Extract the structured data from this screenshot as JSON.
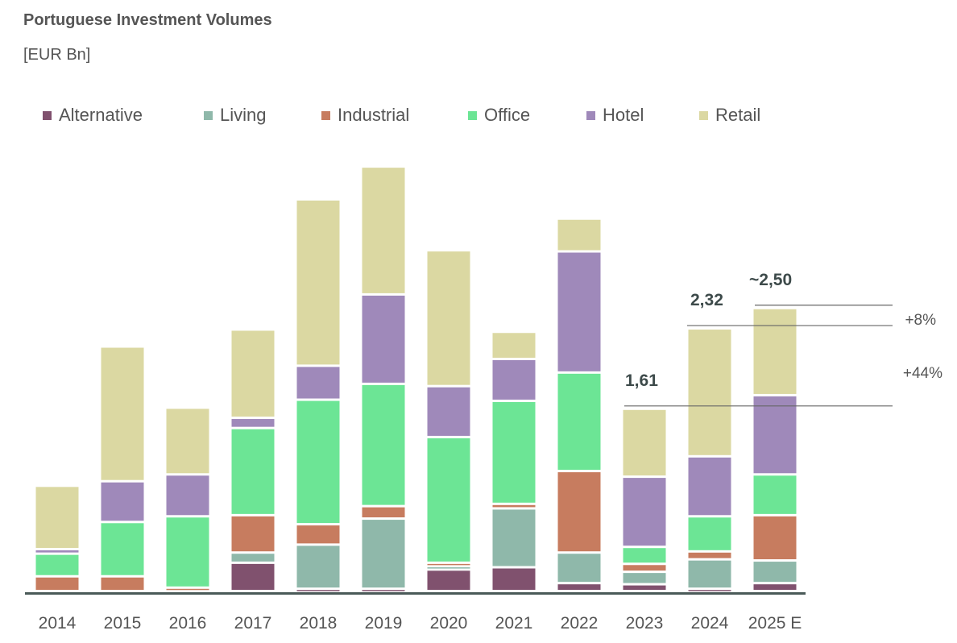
{
  "chart_data": {
    "type": "bar",
    "stacked": true,
    "title": "Portuguese Investment Volumes",
    "subtitle": "[EUR Bn]",
    "categories": [
      "2014",
      "2015",
      "2016",
      "2017",
      "2018",
      "2019",
      "2020",
      "2021",
      "2022",
      "2023",
      "2024",
      "2025 E"
    ],
    "series": [
      {
        "name": "Alternative",
        "color": "#80516e",
        "values": [
          0,
          0,
          0,
          0.25,
          0.02,
          0.02,
          0.19,
          0.21,
          0.07,
          0.06,
          0.02,
          0.07
        ]
      },
      {
        "name": "Living",
        "color": "#8fb8aa",
        "values": [
          0,
          0,
          0,
          0.09,
          0.39,
          0.62,
          0.03,
          0.52,
          0.27,
          0.11,
          0.26,
          0.2
        ]
      },
      {
        "name": "Industrial",
        "color": "#c77c5f",
        "values": [
          0.13,
          0.13,
          0.03,
          0.33,
          0.18,
          0.11,
          0.03,
          0.04,
          0.72,
          0.07,
          0.07,
          0.4
        ]
      },
      {
        "name": "Office",
        "color": "#6ce595",
        "values": [
          0.2,
          0.48,
          0.63,
          0.77,
          1.1,
          1.08,
          1.11,
          0.91,
          0.87,
          0.15,
          0.31,
          0.36
        ]
      },
      {
        "name": "Hotel",
        "color": "#9f89ba",
        "values": [
          0.04,
          0.36,
          0.37,
          0.09,
          0.3,
          0.79,
          0.45,
          0.37,
          1.07,
          0.62,
          0.53,
          0.7
        ]
      },
      {
        "name": "Retail",
        "color": "#dbd8a2",
        "values": [
          0.56,
          1.19,
          0.59,
          0.78,
          1.47,
          1.13,
          1.2,
          0.24,
          0.29,
          0.6,
          1.13,
          0.77
        ]
      }
    ],
    "ylim": [
      0,
      3.8
    ],
    "grid": false,
    "legend_position": "top-left",
    "annotations": {
      "totals": [
        {
          "category": "2023",
          "label": "1,61",
          "value": 1.61
        },
        {
          "category": "2024",
          "label": "2,32",
          "value": 2.32
        },
        {
          "category": "2025 E",
          "label": "~2,50",
          "value": 2.5
        }
      ],
      "changes": [
        {
          "label": "+8%"
        },
        {
          "label": "+44%"
        }
      ]
    }
  }
}
